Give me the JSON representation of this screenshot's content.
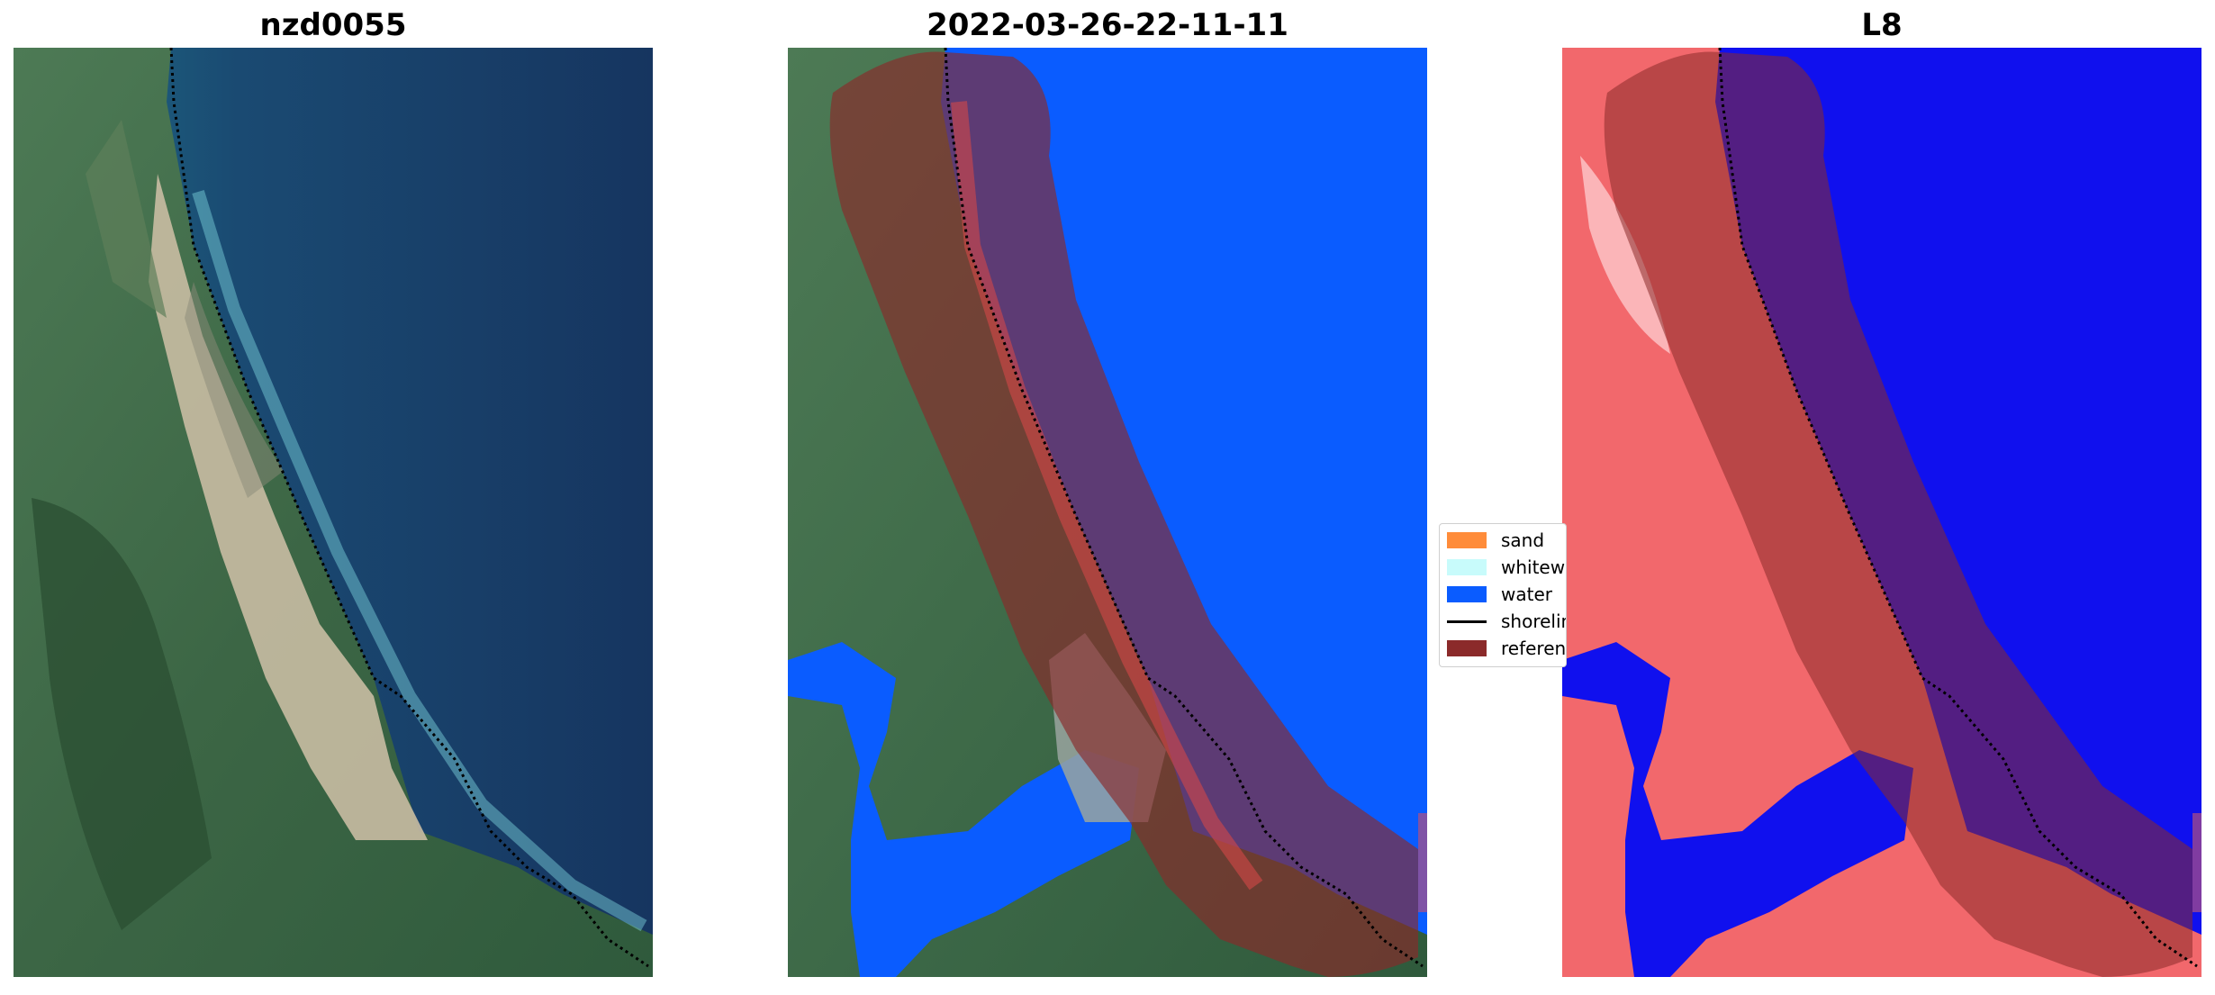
{
  "panels": [
    {
      "title": "nzd0055"
    },
    {
      "title": "2022-03-26-22-11-11"
    },
    {
      "title": "L8"
    }
  ],
  "legend": {
    "items": [
      {
        "label": "sand",
        "color": "#ff8c3a"
      },
      {
        "label": "whitewater",
        "color": "#c8fbfb"
      },
      {
        "label": "water",
        "color": "#0a5cff"
      },
      {
        "label": "shoreline",
        "color": "#000000"
      },
      {
        "label": "reference shoreline buffer",
        "color": "#8b2a2a"
      }
    ]
  },
  "colors": {
    "ocean_deep": "#163560",
    "ocean_shallow": "#1f6f86",
    "land_green": "#3c6a45",
    "sand": "#c8b89c",
    "water_class": "#0a5cff",
    "buffer": "#8b2a2a",
    "index_land": "#f2686c",
    "index_water": "#1010ee"
  }
}
